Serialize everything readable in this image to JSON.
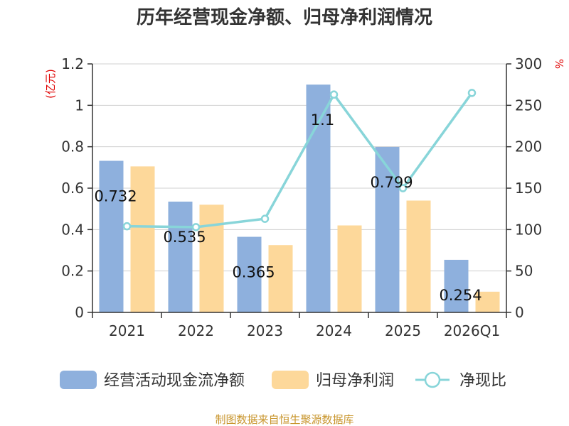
{
  "chart_data": {
    "type": "bar",
    "title": "历年经营现金净额、归母净利润情况",
    "categories": [
      "2021",
      "2022",
      "2023",
      "2024",
      "2025",
      "2026Q1"
    ],
    "y_left": {
      "unit": "(亿元)",
      "ylim": [
        0,
        1.2
      ],
      "ticks": [
        "0",
        "0.2",
        "0.4",
        "0.6",
        "0.8",
        "1",
        "1.2"
      ],
      "tick_values": [
        0,
        0.2,
        0.4,
        0.6,
        0.8,
        1.0,
        1.2
      ]
    },
    "y_right": {
      "unit": "%",
      "ylim": [
        0,
        300
      ],
      "ticks": [
        "0",
        "50",
        "100",
        "150",
        "200",
        "250",
        "300"
      ],
      "tick_values": [
        0,
        50,
        100,
        150,
        200,
        250,
        300
      ]
    },
    "grid": true,
    "legend_position": "bottom",
    "series": [
      {
        "name": "经营活动现金流净额",
        "type": "bar",
        "axis": "left",
        "color": "#8eb0dd",
        "values": [
          0.732,
          0.535,
          0.365,
          1.1,
          0.799,
          0.254
        ],
        "labels": [
          "0.732",
          "0.535",
          "0.365",
          "1.1",
          "0.799",
          "0.254"
        ]
      },
      {
        "name": "归母净利润",
        "type": "bar",
        "axis": "left",
        "color": "#fdd89a",
        "values": [
          0.705,
          0.52,
          0.325,
          0.42,
          0.54,
          0.1
        ]
      },
      {
        "name": "净现比",
        "type": "line",
        "axis": "right",
        "color": "#88d5d9",
        "values": [
          104,
          103,
          113,
          263,
          150,
          265
        ]
      }
    ]
  },
  "source": "制图数据来自恒生聚源数据库"
}
